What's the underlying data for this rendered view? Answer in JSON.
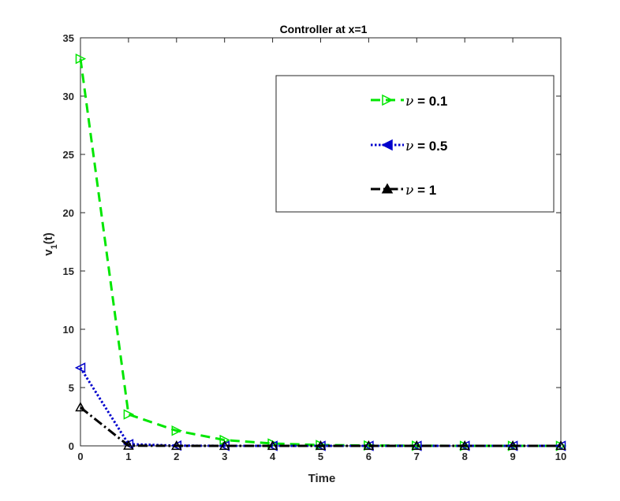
{
  "chart_data": {
    "type": "line",
    "title": "Controller at x=1",
    "xlabel": "Time",
    "ylabel_main": "v",
    "ylabel_sub": "1",
    "ylabel_tail": "(t)",
    "xlim": [
      0,
      10
    ],
    "ylim": [
      0,
      35
    ],
    "xticks": [
      0,
      1,
      2,
      3,
      4,
      5,
      6,
      7,
      8,
      9,
      10
    ],
    "yticks": [
      0,
      5,
      10,
      15,
      20,
      25,
      30,
      35
    ],
    "grid": false,
    "legend_position": "top-right",
    "x": [
      0,
      1,
      2,
      3,
      4,
      5,
      6,
      7,
      8,
      9,
      10
    ],
    "series": [
      {
        "name": "ν = 0.1",
        "legend_symbol": "ν",
        "legend_text": " = 0.1",
        "color": "#00e600",
        "dash": "dashed",
        "marker": "triangle-right",
        "values": [
          33.2,
          2.7,
          1.3,
          0.5,
          0.2,
          0.07,
          0.03,
          0.01,
          0.0,
          0.0,
          0.0
        ]
      },
      {
        "name": "ν = 0.5",
        "legend_symbol": "ν",
        "legend_text": " = 0.5",
        "color": "#0000cc",
        "dash": "dotted",
        "marker": "triangle-left",
        "values": [
          6.7,
          0.15,
          0.02,
          0.0,
          0.0,
          0.0,
          0.0,
          0.0,
          0.0,
          0.0,
          0.0
        ]
      },
      {
        "name": "ν = 1",
        "legend_symbol": "ν",
        "legend_text": " = 1",
        "color": "#000000",
        "dash": "dashdot",
        "marker": "triangle-up",
        "values": [
          3.3,
          0.02,
          0.0,
          0.0,
          0.0,
          0.0,
          0.0,
          0.0,
          0.0,
          0.0,
          0.0
        ]
      }
    ]
  }
}
